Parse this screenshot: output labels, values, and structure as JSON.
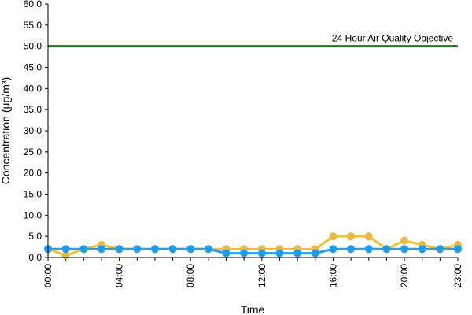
{
  "chart_data": {
    "type": "line",
    "title": "",
    "xlabel": "Time",
    "ylabel": "Concentration (µg/m³)",
    "x": [
      "00:00",
      "01:00",
      "02:00",
      "03:00",
      "04:00",
      "05:00",
      "06:00",
      "07:00",
      "08:00",
      "09:00",
      "10:00",
      "11:00",
      "12:00",
      "13:00",
      "14:00",
      "15:00",
      "16:00",
      "17:00",
      "18:00",
      "19:00",
      "20:00",
      "21:00",
      "22:00",
      "23:00"
    ],
    "x_tick_labels": [
      "00:00",
      "04:00",
      "08:00",
      "12:00",
      "16:00",
      "20:00",
      "23:00"
    ],
    "ylim": [
      0,
      60
    ],
    "y_tick_labels": [
      "0.0",
      "5.0",
      "10.0",
      "15.0",
      "20.0",
      "25.0",
      "30.0",
      "35.0",
      "40.0",
      "45.0",
      "50.0",
      "55.0",
      "60.0"
    ],
    "grid": false,
    "series": [
      {
        "color": "#f2c12e",
        "marker_color": "#e8b84a",
        "values": [
          2,
          0.5,
          2,
          3,
          2,
          2,
          2,
          2,
          2,
          2,
          2,
          2,
          2,
          2,
          2,
          2,
          5,
          5,
          5,
          2,
          4,
          3,
          2,
          3
        ]
      },
      {
        "color": "#2e9ee6",
        "marker_color": "#1c9cf0",
        "values": [
          2,
          2,
          2,
          2,
          2,
          2,
          2,
          2,
          2,
          2,
          1,
          1,
          1,
          1,
          1,
          1,
          2,
          2,
          2,
          2,
          2,
          2,
          2,
          2
        ]
      }
    ],
    "reference_line": {
      "value": 50,
      "label": "24 Hour Air Quality Objective",
      "color": "#1a7a1a"
    },
    "legend": "none"
  }
}
